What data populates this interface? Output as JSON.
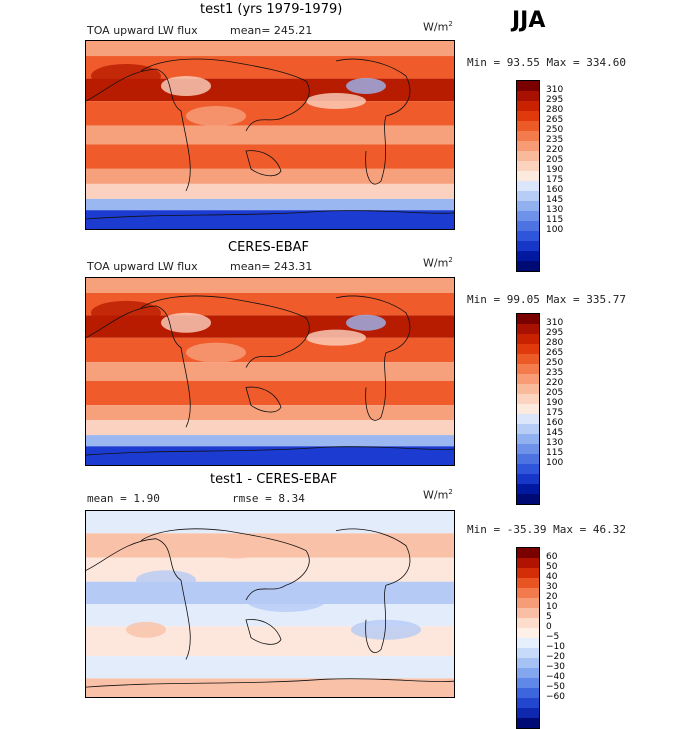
{
  "season": "JJA",
  "units": {
    "base": "W/m",
    "exp": "2"
  },
  "panels": [
    {
      "title": "test1 (yrs 1979-1979)",
      "variable": "TOA upward LW flux",
      "mean_text": "mean= 245.21",
      "minmax_text": "Min =  93.55 Max = 334.60",
      "colorbar": {
        "colors": [
          "#7a0000",
          "#a81000",
          "#c92200",
          "#e03a0c",
          "#ec5a28",
          "#f47c4c",
          "#f79c74",
          "#f9b99b",
          "#fbd3bf",
          "#fdeadf",
          "#dbe6fa",
          "#b7cdf6",
          "#91b0f0",
          "#6e92ea",
          "#4d73e3",
          "#2f55da",
          "#1637c8",
          "#0019a0",
          "#000a74"
        ],
        "ticks": [
          "310",
          "295",
          "280",
          "265",
          "250",
          "235",
          "220",
          "205",
          "190",
          "175",
          "160",
          "145",
          "130",
          "115",
          "100"
        ]
      },
      "map_colors": {
        "hot": "#b81c00",
        "warm": "#ef5b2a",
        "mid": "#f7a07c",
        "cool": "#fbd2bf",
        "cold": "#9ab7f2",
        "polar": "#1c3bd0"
      }
    },
    {
      "title": "CERES-EBAF",
      "variable": "TOA upward LW flux",
      "mean_text": "mean= 243.31",
      "minmax_text": "Min =  99.05 Max = 335.77",
      "colorbar": {
        "colors": [
          "#7a0000",
          "#a81000",
          "#c92200",
          "#e03a0c",
          "#ec5a28",
          "#f47c4c",
          "#f79c74",
          "#f9b99b",
          "#fbd3bf",
          "#fdeadf",
          "#dbe6fa",
          "#b7cdf6",
          "#91b0f0",
          "#6e92ea",
          "#4d73e3",
          "#2f55da",
          "#1637c8",
          "#0019a0",
          "#000a74"
        ],
        "ticks": [
          "310",
          "295",
          "280",
          "265",
          "250",
          "235",
          "220",
          "205",
          "190",
          "175",
          "160",
          "145",
          "130",
          "115",
          "100"
        ]
      },
      "map_colors": {
        "hot": "#b81c00",
        "warm": "#ef5b2a",
        "mid": "#f7a07c",
        "cool": "#fbd2bf",
        "cold": "#9ab7f2",
        "polar": "#1c3bd0"
      }
    },
    {
      "title": "test1 - CERES-EBAF",
      "mean_text": "mean =    1.90",
      "rmse_text": "rmse =   8.34",
      "minmax_text": "Min = -35.39 Max =  46.32",
      "colorbar": {
        "colors": [
          "#7a0000",
          "#b01400",
          "#d42e08",
          "#e85522",
          "#f27a4c",
          "#f69d77",
          "#f9bea3",
          "#fcdccb",
          "#fef0e6",
          "#e6effc",
          "#c8dafa",
          "#a6c2f5",
          "#83a6ef",
          "#5f88e8",
          "#3d66de",
          "#2346cf",
          "#0f28b0",
          "#000a74"
        ],
        "ticks": [
          "60",
          "50",
          "40",
          "30",
          "20",
          "10",
          "5",
          "0",
          "−5",
          "−10",
          "−20",
          "−30",
          "−40",
          "−50",
          "−60"
        ]
      },
      "map_colors": {
        "hot": "#f08a60",
        "warm": "#f9c2a8",
        "mid": "#fde6dc",
        "cool": "#e3ecfb",
        "cold": "#b5cbf5",
        "polar": "#6f93ea"
      }
    }
  ]
}
